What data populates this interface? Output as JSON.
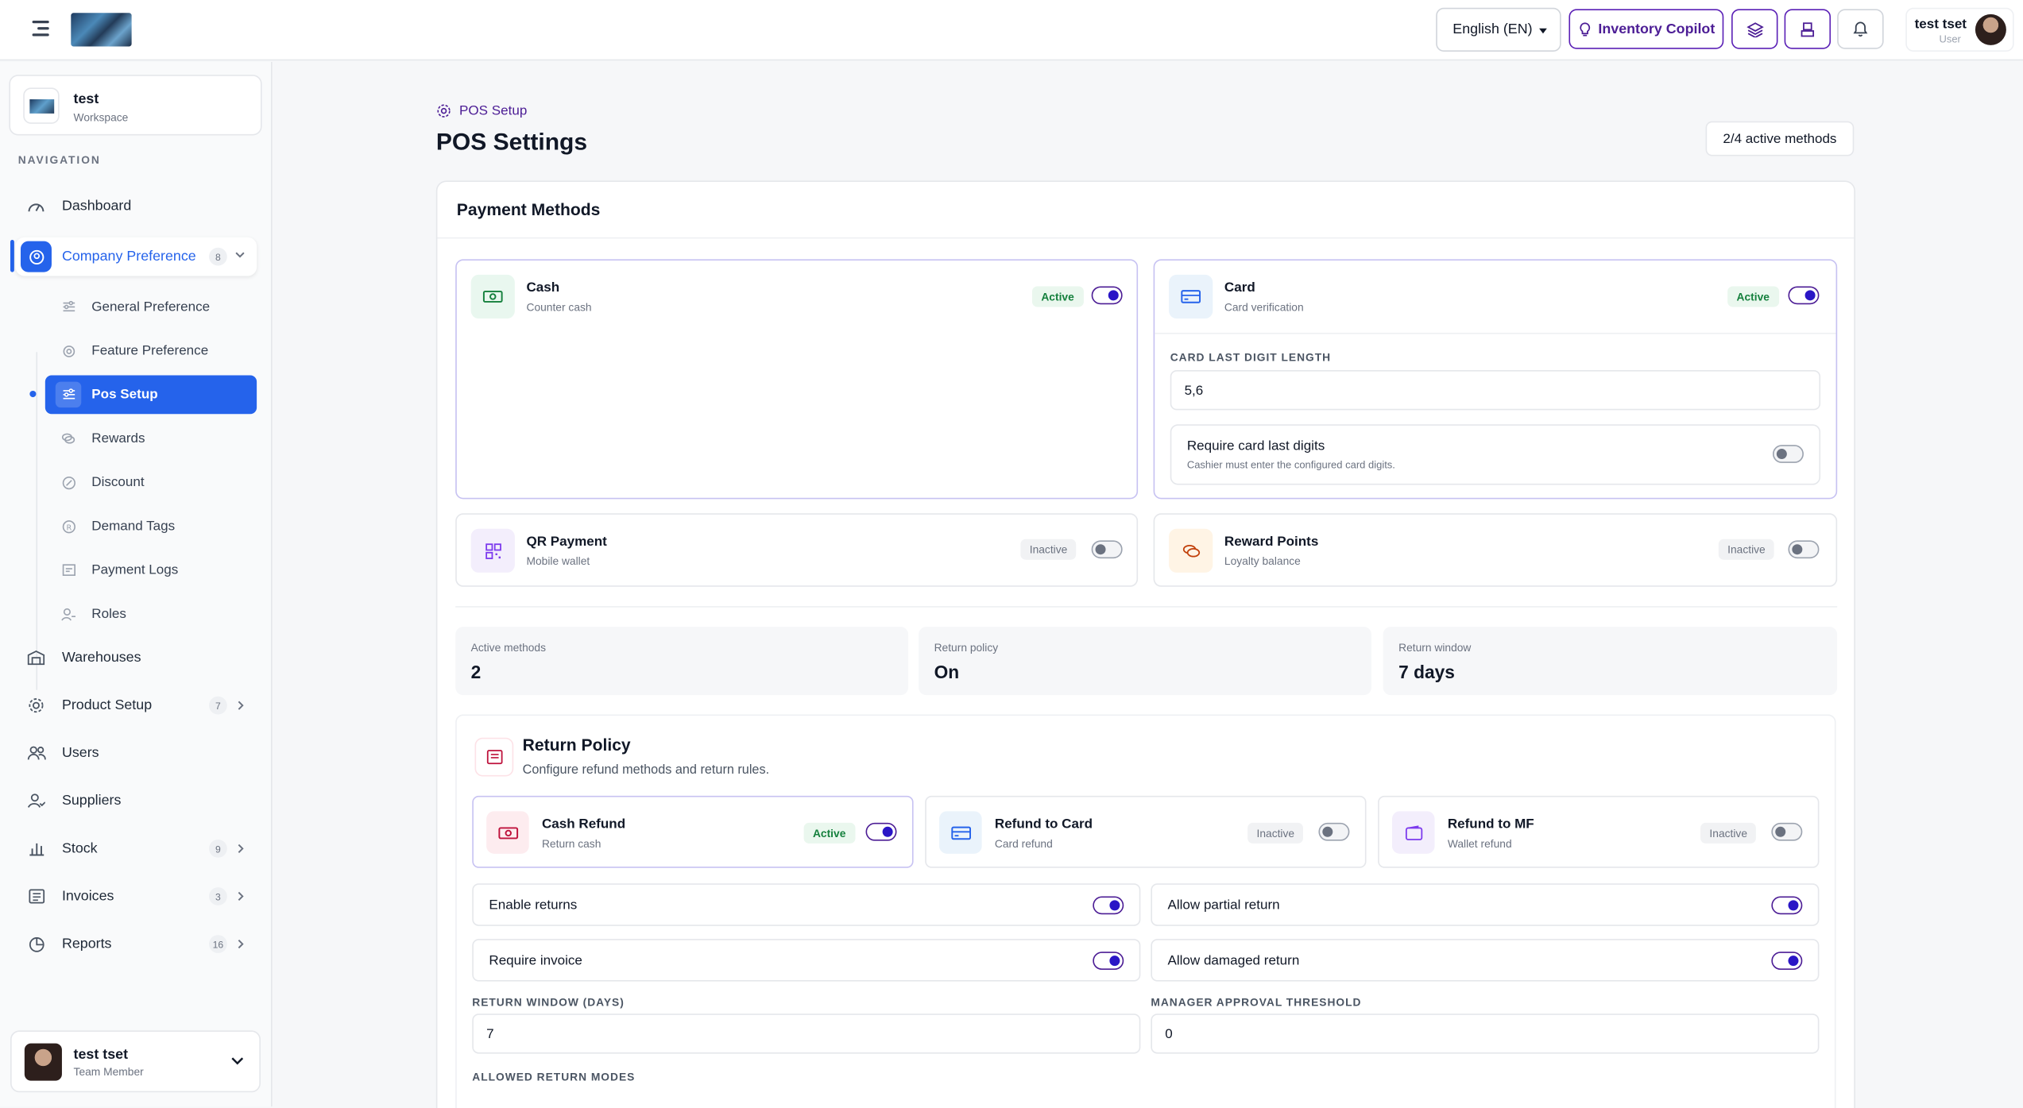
{
  "topbar": {
    "language": "English (EN)",
    "copilot_label": "Inventory Copilot",
    "user_name": "test tset",
    "user_role": "User"
  },
  "sidebar": {
    "workspace_name": "test",
    "workspace_label": "Workspace",
    "nav_label": "NAVIGATION",
    "items": [
      {
        "label": "Dashboard",
        "icon": "gauge-icon"
      },
      {
        "label": "Company Preference",
        "badge": "8",
        "icon": "company-icon"
      },
      {
        "label": "Warehouses",
        "icon": "warehouse-icon"
      },
      {
        "label": "Product Setup",
        "badge": "7",
        "icon": "gear-icon"
      },
      {
        "label": "Users",
        "icon": "users-icon"
      },
      {
        "label": "Suppliers",
        "icon": "supplier-icon"
      },
      {
        "label": "Stock",
        "badge": "9",
        "icon": "bar-chart-icon"
      },
      {
        "label": "Invoices",
        "badge": "3",
        "icon": "invoice-icon"
      },
      {
        "label": "Reports",
        "badge": "16",
        "icon": "pie-chart-icon"
      }
    ],
    "subitems": [
      {
        "label": "General Preference"
      },
      {
        "label": "Feature Preference"
      },
      {
        "label": "Pos Setup"
      },
      {
        "label": "Rewards"
      },
      {
        "label": "Discount"
      },
      {
        "label": "Demand Tags"
      },
      {
        "label": "Payment Logs"
      },
      {
        "label": "Roles"
      }
    ],
    "bottom_user_name": "test tset",
    "bottom_user_role": "Team Member"
  },
  "page": {
    "breadcrumb": "POS Setup",
    "title": "POS Settings",
    "active_summary": "2/4 active methods"
  },
  "payment_methods": {
    "heading": "Payment Methods",
    "methods": [
      {
        "name": "Cash",
        "sub": "Counter cash",
        "status": "Active",
        "on": true
      },
      {
        "name": "Card",
        "sub": "Card verification",
        "status": "Active",
        "on": true
      },
      {
        "name": "QR Payment",
        "sub": "Mobile wallet",
        "status": "Inactive",
        "on": false
      },
      {
        "name": "Reward Points",
        "sub": "Loyalty balance",
        "status": "Inactive",
        "on": false
      }
    ],
    "card_digit_label": "CARD LAST DIGIT LENGTH",
    "card_digit_value": "5,6",
    "require_digits_title": "Require card last digits",
    "require_digits_desc": "Cashier must enter the configured card digits."
  },
  "stats": [
    {
      "label": "Active methods",
      "value": "2"
    },
    {
      "label": "Return policy",
      "value": "On"
    },
    {
      "label": "Return window",
      "value": "7 days"
    }
  ],
  "return_policy": {
    "title": "Return Policy",
    "desc": "Configure refund methods and return rules.",
    "modes": [
      {
        "name": "Cash Refund",
        "sub": "Return cash",
        "status": "Active",
        "on": true
      },
      {
        "name": "Refund to Card",
        "sub": "Card refund",
        "status": "Inactive",
        "on": false
      },
      {
        "name": "Refund to MF",
        "sub": "Wallet refund",
        "status": "Inactive",
        "on": false
      }
    ],
    "toggles": [
      {
        "label": "Enable returns",
        "on": true
      },
      {
        "label": "Allow partial return",
        "on": true
      },
      {
        "label": "Require invoice",
        "on": true
      },
      {
        "label": "Allow damaged return",
        "on": true
      }
    ],
    "window_label": "RETURN WINDOW (DAYS)",
    "window_value": "7",
    "threshold_label": "MANAGER APPROVAL THRESHOLD",
    "threshold_value": "0",
    "allowed_modes_label": "ALLOWED RETURN MODES"
  },
  "colors": {
    "accent": "#2563eb",
    "brand_purple": "#4c1d95",
    "active_green": "#15803d"
  }
}
